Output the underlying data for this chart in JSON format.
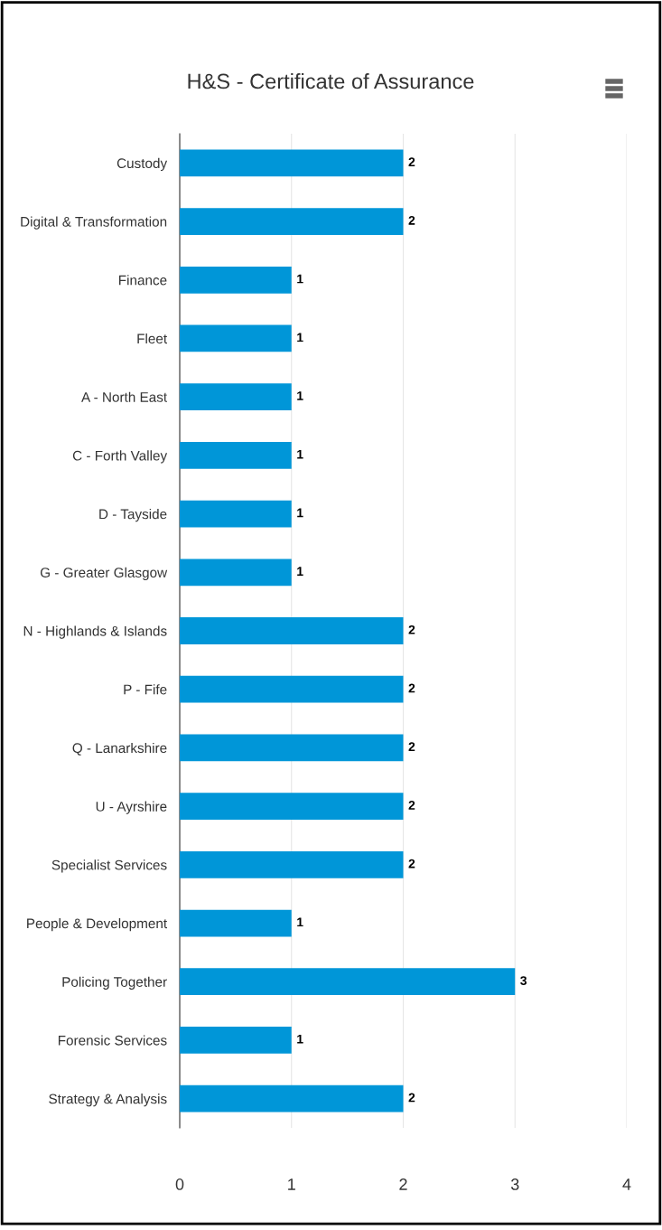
{
  "chart_data": {
    "type": "bar",
    "orientation": "horizontal",
    "title": "H&S - Certificate of Assurance",
    "categories": [
      "Custody",
      "Digital & Transformation",
      "Finance",
      "Fleet",
      "A - North East",
      "C - Forth Valley",
      "D - Tayside",
      "G - Greater Glasgow",
      "N - Highlands & Islands",
      "P - Fife",
      "Q - Lanarkshire",
      "U - Ayrshire",
      "Specialist Services",
      "People & Development",
      "Policing Together",
      "Forensic Services",
      "Strategy & Analysis"
    ],
    "values": [
      2,
      2,
      1,
      1,
      1,
      1,
      1,
      1,
      2,
      2,
      2,
      2,
      2,
      1,
      3,
      1,
      2
    ],
    "color": "#0096d8",
    "xlim": [
      0,
      4
    ],
    "xticks": [
      0,
      1,
      2,
      3,
      4
    ],
    "grid": "x",
    "data_labels": true,
    "legend": false
  }
}
